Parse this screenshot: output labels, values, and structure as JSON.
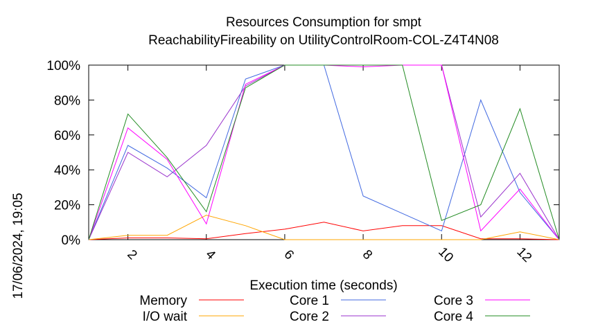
{
  "chart_data": {
    "type": "line",
    "title": "Resources Consumption for smpt",
    "subtitle": "ReachabilityFireability on UtilityControlRoom-COL-Z4T4N08",
    "xlabel": "Execution time (seconds)",
    "ylabel": "",
    "xlim": [
      1,
      13
    ],
    "ylim": [
      0,
      100
    ],
    "xticks": [
      "2",
      "4",
      "6",
      "8",
      "10",
      "12"
    ],
    "yticks": [
      "0%",
      "20%",
      "40%",
      "60%",
      "80%",
      "100%"
    ],
    "grid": false,
    "legend_position": "bottom",
    "timestamp": "17/06/2024, 19:05",
    "x": [
      1,
      2,
      3,
      4,
      5,
      6,
      7,
      8,
      9,
      10,
      11,
      12,
      13
    ],
    "series": [
      {
        "name": "Memory",
        "color": "#ff0000",
        "values": [
          0,
          1,
          1,
          0.5,
          3.5,
          6,
          10,
          5,
          8,
          8,
          0.5,
          0.5,
          0
        ]
      },
      {
        "name": "I/O wait",
        "color": "#ffa500",
        "values": [
          0,
          2.5,
          2.5,
          14,
          8,
          0,
          0,
          0,
          0,
          0,
          0,
          4.5,
          0
        ]
      },
      {
        "name": "Core 1",
        "color": "#4169e1",
        "values": [
          0,
          54,
          41,
          24,
          92,
          100,
          100,
          25,
          15,
          5,
          80,
          27,
          0
        ]
      },
      {
        "name": "Core 2",
        "color": "#9932cc",
        "values": [
          0,
          50,
          36,
          54,
          88,
          100,
          100,
          100,
          100,
          100,
          13,
          38,
          0
        ]
      },
      {
        "name": "Core 3",
        "color": "#ff00ff",
        "values": [
          0,
          64,
          46,
          9,
          89,
          100,
          100,
          99,
          100,
          100,
          5,
          29,
          0
        ]
      },
      {
        "name": "Core 4",
        "color": "#228b22",
        "values": [
          0,
          72,
          47,
          16,
          87,
          100,
          100,
          100,
          100,
          11,
          20,
          75,
          0
        ]
      }
    ]
  }
}
